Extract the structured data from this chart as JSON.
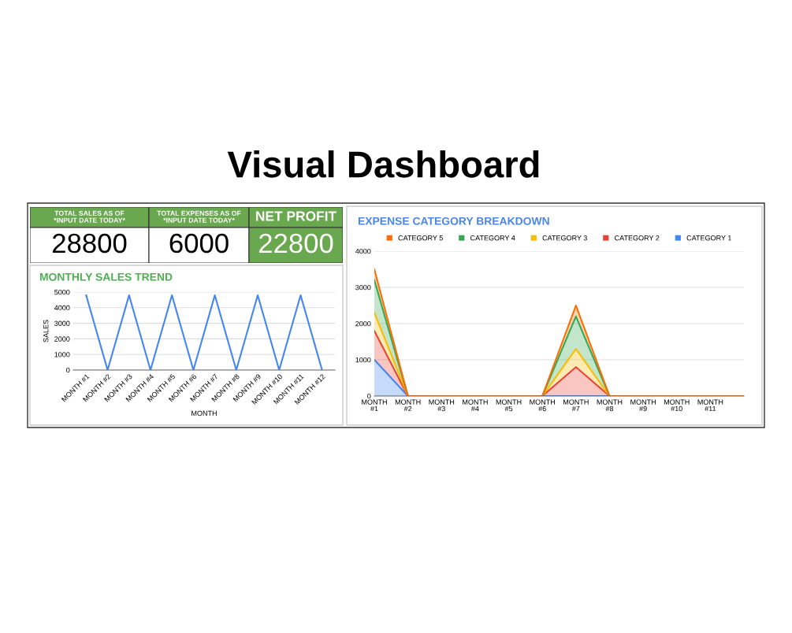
{
  "chart_data": [
    {
      "type": "other",
      "title": "Visual Dashboard",
      "categories": [
        "TOTAL SALES AS OF *INPUT DATE TODAY*",
        "TOTAL EXPENSES AS OF *INPUT DATE TODAY*",
        "NET PROFIT"
      ],
      "values": [
        28800,
        6000,
        22800
      ],
      "data_labels": true
    },
    {
      "type": "line",
      "title": "MONTHLY SALES TREND",
      "xlabel": "MONTH",
      "ylabel": "SALES",
      "categories": [
        "MONTH #1",
        "MONTH #2",
        "MONTH #3",
        "MONTH #4",
        "MONTH #5",
        "MONTH #6",
        "MONTH #7",
        "MONTH #8",
        "MONTH #9",
        "MONTH #10",
        "MONTH #11",
        "MONTH #12"
      ],
      "series": [
        {
          "color": "#4285f4",
          "values": [
            4800,
            0,
            4800,
            0,
            4800,
            0,
            4800,
            0,
            4800,
            0,
            4800,
            0
          ]
        }
      ],
      "ylim": [
        0,
        5000
      ],
      "yticks": [
        0,
        1000,
        2000,
        3000,
        4000,
        5000
      ],
      "grid": "y",
      "legend": false,
      "marker": "none"
    },
    {
      "type": "area",
      "title": "EXPENSE CATEGORY BREAKDOWN",
      "stacked": true,
      "categories": [
        "MONTH #1",
        "MONTH #2",
        "MONTH #3",
        "MONTH #4",
        "MONTH #5",
        "MONTH #6",
        "MONTH #7",
        "MONTH #8",
        "MONTH #9",
        "MONTH #10",
        "MONTH #11",
        null
      ],
      "series": [
        {
          "name": "CATEGORY 1",
          "color": "#4285f4",
          "values": [
            1000,
            0,
            0,
            0,
            0,
            0,
            0,
            0,
            0,
            0,
            0,
            0
          ]
        },
        {
          "name": "CATEGORY 2",
          "color": "#ea4335",
          "values": [
            800,
            0,
            0,
            0,
            0,
            0,
            800,
            0,
            0,
            0,
            0,
            0
          ]
        },
        {
          "name": "CATEGORY 3",
          "color": "#fbbc04",
          "values": [
            500,
            0,
            0,
            0,
            0,
            0,
            500,
            0,
            0,
            0,
            0,
            0
          ]
        },
        {
          "name": "CATEGORY 4",
          "color": "#34a853",
          "values": [
            900,
            0,
            0,
            0,
            0,
            0,
            900,
            0,
            0,
            0,
            0,
            0
          ]
        },
        {
          "name": "CATEGORY 5",
          "color": "#ff6d01",
          "values": [
            300,
            0,
            0,
            0,
            0,
            0,
            300,
            0,
            0,
            0,
            0,
            0
          ]
        }
      ],
      "ylim": [
        0,
        4000
      ],
      "yticks": [
        0,
        1000,
        2000,
        3000,
        4000
      ],
      "grid": "y",
      "legend": "top"
    }
  ]
}
